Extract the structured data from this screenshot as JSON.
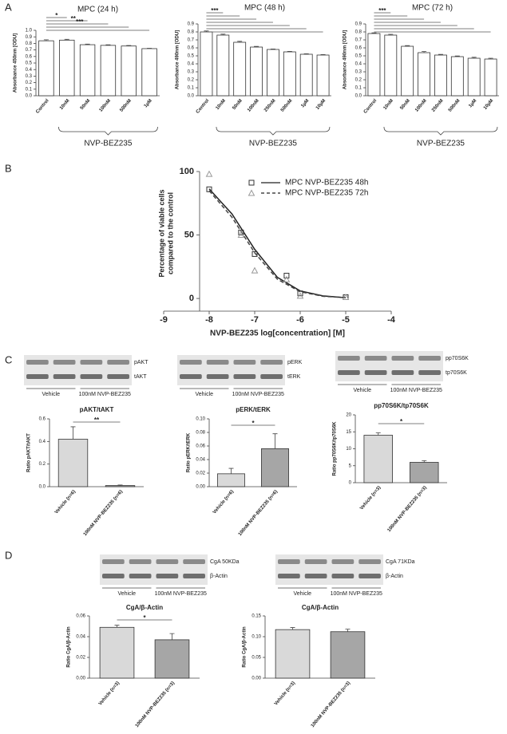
{
  "panel_labels": [
    "A",
    "B",
    "C",
    "D"
  ],
  "blots": [
    {
      "bands": [
        "pAKT",
        "tAKT"
      ],
      "groups": [
        "Vehicle",
        "100nM NVP-BEZ235"
      ]
    },
    {
      "bands": [
        "pERK",
        "tERK"
      ],
      "groups": [
        "Vehicle",
        "100nM NVP-BEZ235"
      ]
    },
    {
      "bands": [
        "pp70S6K",
        "tp70S6K"
      ],
      "groups": [
        "Vehicle",
        "100nM NVP-BEZ235"
      ]
    },
    {
      "bands": [
        "CgA 50KDa",
        "β-Actin"
      ],
      "groups": [
        "Vehicle",
        "100nM NVP-BEZ235"
      ]
    },
    {
      "bands": [
        "CgA 71KDa",
        "β-Actin"
      ],
      "groups": [
        "Vehicle",
        "100nM NVP-BEZ235"
      ]
    }
  ],
  "chart_data": [
    {
      "type": "bar",
      "title": "MPC (24 h)",
      "ylabel": "Absorbance 450nm [ODU]",
      "categories": [
        "Control",
        "10nM",
        "50nM",
        "100nM",
        "500nM",
        "1µM"
      ],
      "values": [
        0.84,
        0.85,
        0.78,
        0.77,
        0.76,
        0.72
      ],
      "errors": [
        0.015,
        0.012,
        0.01,
        0.008,
        0.008,
        0.006
      ],
      "color": "#ffffff",
      "ylim": [
        0,
        1.0
      ],
      "yticks": [
        {
          "value": 0,
          "label": "0.0"
        },
        0.1,
        0.2,
        0.3,
        0.4,
        0.5,
        0.6,
        0.7,
        0.8,
        0.9,
        {
          "value": 1.0,
          "label": "1.0"
        }
      ],
      "group_label": "NVP-BEZ235",
      "significance": [
        "*",
        "**",
        "***"
      ]
    },
    {
      "type": "bar",
      "title": "MPC (48 h)",
      "ylabel": "Absorbance 490nm [ODU]",
      "categories": [
        "Control",
        "10nM",
        "50nM",
        "100nM",
        "250nM",
        "500nM",
        "1µM",
        "10µM"
      ],
      "values": [
        0.8,
        0.76,
        0.67,
        0.61,
        0.58,
        0.55,
        0.52,
        0.51
      ],
      "errors": [
        0.012,
        0.012,
        0.012,
        0.008,
        0.006,
        0.006,
        0.006,
        0.006
      ],
      "color": "#ffffff",
      "ylim": [
        0,
        0.9
      ],
      "yticks": [
        {
          "value": 0,
          "label": "0.0"
        },
        0.1,
        0.2,
        0.3,
        0.4,
        0.5,
        0.6,
        0.7,
        0.8,
        0.9
      ],
      "group_label": "NVP-BEZ235",
      "significance": [
        "***"
      ]
    },
    {
      "type": "bar",
      "title": "MPC (72 h)",
      "ylabel": "Absorbance 490nm [ODU]",
      "categories": [
        "Control",
        "10nM",
        "50nM",
        "100nM",
        "250nM",
        "500nM",
        "1µM",
        "10µM"
      ],
      "values": [
        0.78,
        0.76,
        0.62,
        0.54,
        0.51,
        0.49,
        0.47,
        0.46
      ],
      "errors": [
        0.008,
        0.01,
        0.008,
        0.015,
        0.008,
        0.008,
        0.012,
        0.01
      ],
      "color": "#ffffff",
      "ylim": [
        0,
        0.9
      ],
      "yticks": [
        {
          "value": 0,
          "label": "0.0"
        },
        0.1,
        0.2,
        0.3,
        0.4,
        0.5,
        0.6,
        0.7,
        0.8,
        0.9
      ],
      "group_label": "NVP-BEZ235",
      "significance": [
        "***"
      ]
    },
    {
      "type": "line",
      "xlabel": "NVP-BEZ235 log[concentration] [M]",
      "ylabel": [
        "Percentage of viable cells",
        "compared to the control"
      ],
      "xlim": [
        -9,
        -4
      ],
      "xticks": [
        -9,
        -8,
        -7,
        -6,
        -5,
        -4
      ],
      "ylim": [
        -10,
        100
      ],
      "yticks": [
        0,
        50,
        100
      ],
      "series": [
        {
          "name": "MPC NVP-BEZ235 48h",
          "color": "#333333",
          "marker": "square",
          "dash": "solid",
          "x": [
            -8,
            -7.3,
            -7,
            -6.3,
            -6,
            -5
          ],
          "values": [
            86,
            52,
            35,
            18,
            4,
            1
          ],
          "fit_x": [
            -8,
            -7.5,
            -7,
            -6.5,
            -6,
            -5.5,
            -5
          ],
          "fit_values": [
            86.3,
            66.6,
            38.7,
            16.6,
            5.9,
            2.0,
            0.6
          ]
        },
        {
          "name": "MPC NVP-BEZ235 72h",
          "color": "#999999",
          "marker": "triangle",
          "dash": "dashed",
          "x": [
            -8,
            -7.3,
            -7,
            -6.3,
            -6,
            -5
          ],
          "values": [
            98,
            50,
            22,
            15,
            2,
            1
          ],
          "fit_x": [
            -8,
            -7.5,
            -7,
            -6.5,
            -6,
            -5.5,
            -5
          ],
          "fit_values": [
            84.9,
            64.0,
            36.0,
            15.1,
            5.3,
            1.7,
            0.6
          ]
        }
      ]
    },
    {
      "type": "bar",
      "title": "pAKT/tAKT",
      "ylabel": "Ratio pAKT/tAKT",
      "categories": [
        "Vehicle (n=6)",
        "100nM NVP-BEZ235 (n=6)"
      ],
      "values": [
        0.42,
        0.01
      ],
      "errors": [
        0.11,
        0.005
      ],
      "colors": [
        "#d9d9d9",
        "#a6a6a6"
      ],
      "ylim": [
        0,
        0.6
      ],
      "yticks": [
        {
          "value": 0,
          "label": "0.0"
        },
        0.2,
        0.4,
        0.6
      ],
      "significance": [
        "**"
      ]
    },
    {
      "type": "bar",
      "title": "pERK/tERK",
      "ylabel": "Ratio pERK/tERK",
      "categories": [
        "Vehicle (n=6)",
        "100nM NVP-BEZ235 (n=6)"
      ],
      "values": [
        0.019,
        0.056
      ],
      "errors": [
        0.008,
        0.022
      ],
      "colors": [
        "#d9d9d9",
        "#a6a6a6"
      ],
      "ylim": [
        0,
        0.1
      ],
      "yticks": [
        {
          "value": 0,
          "label": "0.00"
        },
        {
          "value": 0.02,
          "label": "0.02"
        },
        {
          "value": 0.04,
          "label": "0.04"
        },
        {
          "value": 0.06,
          "label": "0.06"
        },
        {
          "value": 0.08,
          "label": "0.08"
        },
        {
          "value": 0.1,
          "label": "0.10"
        }
      ],
      "significance": [
        "*"
      ]
    },
    {
      "type": "bar",
      "title": "pp70S6K/tp70S6K",
      "ylabel": "Ratio pp70S6K/tp70S6K",
      "categories": [
        "Vehicle (n=3)",
        "100nM NVP-BEZ235 (n=3)"
      ],
      "values": [
        14,
        6
      ],
      "errors": [
        0.7,
        0.5
      ],
      "colors": [
        "#d9d9d9",
        "#a6a6a6"
      ],
      "ylim": [
        0,
        20
      ],
      "yticks": [
        0,
        5,
        10,
        15,
        20
      ],
      "significance": [
        "*"
      ]
    },
    {
      "type": "bar",
      "title": "CgA/β-Actin",
      "ylabel": "Ratio CgA/β-Actin",
      "categories": [
        "Vehicle (n=3)",
        "100nM NVP-BEZ235 (n=3)"
      ],
      "values": [
        0.049,
        0.037
      ],
      "errors": [
        0.002,
        0.006
      ],
      "colors": [
        "#d9d9d9",
        "#a6a6a6"
      ],
      "ylim": [
        0,
        0.06
      ],
      "yticks": [
        {
          "value": 0,
          "label": "0.00"
        },
        {
          "value": 0.02,
          "label": "0.02"
        },
        {
          "value": 0.04,
          "label": "0.04"
        },
        {
          "value": 0.06,
          "label": "0.06"
        }
      ],
      "significance": [
        "*"
      ]
    },
    {
      "type": "bar",
      "title": "CgA/β-Actin",
      "ylabel": "Ratio CgA/β-Actin",
      "categories": [
        "Vehicle (n=3)",
        "100nM NVP-BEZ235 (n=3)"
      ],
      "values": [
        0.117,
        0.112
      ],
      "errors": [
        0.005,
        0.006
      ],
      "colors": [
        "#d9d9d9",
        "#a6a6a6"
      ],
      "ylim": [
        0,
        0.15
      ],
      "yticks": [
        {
          "value": 0,
          "label": "0.00"
        },
        {
          "value": 0.05,
          "label": "0.05"
        },
        {
          "value": 0.1,
          "label": "0.10"
        },
        {
          "value": 0.15,
          "label": "0.15"
        }
      ]
    }
  ]
}
